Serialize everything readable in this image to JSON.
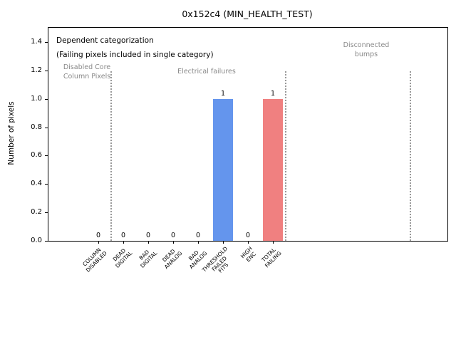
{
  "chart_data": {
    "type": "bar",
    "title": "0x152c4 (MIN_HEALTH_TEST)",
    "xlabel": "",
    "ylabel": "Number of pixels",
    "categories": [
      "COLUMN\nDISABLED",
      "DEAD\nDIGITAL",
      "BAD\nDIGITAL",
      "DEAD\nANALOG",
      "BAD\nANALOG",
      "THRESHOLD\nFAILED\nFITS",
      "HIGH\nENC",
      "TOTAL\nFAILING"
    ],
    "values": [
      0,
      0,
      0,
      0,
      0,
      1,
      0,
      1
    ],
    "bar_colors": [
      "#6495ed",
      "#6495ed",
      "#6495ed",
      "#6495ed",
      "#6495ed",
      "#6495ed",
      "#6495ed",
      "#f08080"
    ],
    "value_labels": [
      "0",
      "0",
      "0",
      "0",
      "0",
      "1",
      "0",
      "1"
    ],
    "ytick_labels": [
      "0.0",
      "0.2",
      "0.4",
      "0.6",
      "0.8",
      "1.0",
      "1.2",
      "1.4"
    ],
    "ytick_values": [
      0.0,
      0.2,
      0.4,
      0.6,
      0.8,
      1.0,
      1.2,
      1.4
    ],
    "ylim": [
      0,
      1.505
    ],
    "xlim": [
      -2,
      14
    ],
    "grid": false,
    "legend_position": "none",
    "separators": {
      "x_positions": [
        0.5,
        7.5,
        12.5
      ],
      "top_y_value": 1.2,
      "color": "#999999",
      "style": "dotted"
    },
    "annotations": [
      {
        "id": "dependent-categorization",
        "text": "Dependent categorization",
        "color": "#000000"
      },
      {
        "id": "failing-note",
        "text": "(Failing pixels included in single category)",
        "color": "#000000"
      },
      {
        "id": "section-disabled-core",
        "text": "Disabled Core\nColumn Pixels",
        "color": "#888888"
      },
      {
        "id": "section-electrical-failures",
        "text": "Electrical failures",
        "color": "#888888"
      },
      {
        "id": "section-disconnected-bumps",
        "text": "Disconnected\nbumps",
        "color": "#888888"
      }
    ],
    "colors": {
      "bar_blue": "#6495ed",
      "bar_red": "#f08080",
      "separator_gray": "#999999",
      "section_label_gray": "#888888",
      "axis_black": "#000000"
    }
  }
}
